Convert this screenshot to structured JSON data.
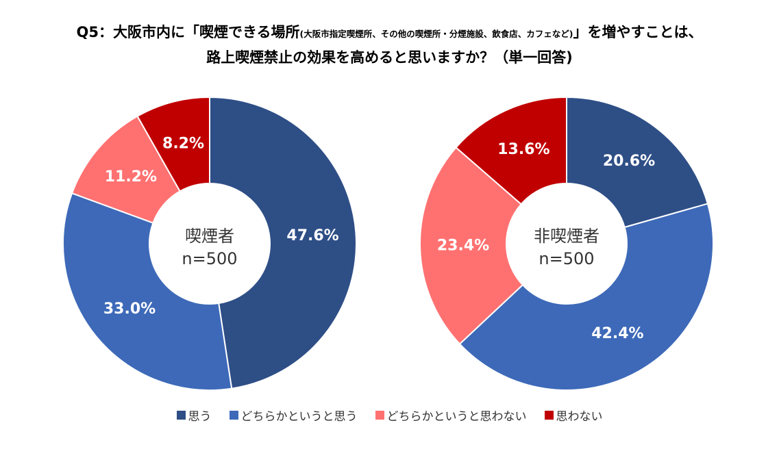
{
  "title": {
    "line1_a": "Q5：大阪市内に「喫煙できる場所",
    "line1_small": "(大阪市指定喫煙所、その他の喫煙所・分煙施設、飲食店、カフェなど)",
    "line1_b": "」を増やすことは、",
    "line2": "路上喫煙禁止の効果を高めると思いますか？（単一回答)"
  },
  "colors": {
    "series": [
      "#2e4e86",
      "#3d69b8",
      "#ff7171",
      "#c00000"
    ]
  },
  "chart_data": [
    {
      "type": "pie",
      "variant": "donut",
      "center_label": [
        "喫煙者",
        "n=500"
      ],
      "categories": [
        "思う",
        "どちらかというと思う",
        "どちらかというと思わない",
        "思わない"
      ],
      "values": [
        47.6,
        33.0,
        11.2,
        8.2
      ],
      "value_labels": [
        "47.6%",
        "33.0%",
        "11.2%",
        "8.2%"
      ]
    },
    {
      "type": "pie",
      "variant": "donut",
      "center_label": [
        "非喫煙者",
        "n=500"
      ],
      "categories": [
        "思う",
        "どちらかというと思う",
        "どちらかというと思わない",
        "思わない"
      ],
      "values": [
        20.6,
        42.4,
        23.4,
        13.6
      ],
      "value_labels": [
        "20.6%",
        "42.4%",
        "23.4%",
        "13.6%"
      ]
    }
  ],
  "legend": [
    {
      "label": "思う"
    },
    {
      "label": "どちらかというと思う"
    },
    {
      "label": "どちらかというと思わない"
    },
    {
      "label": "思わない"
    }
  ]
}
